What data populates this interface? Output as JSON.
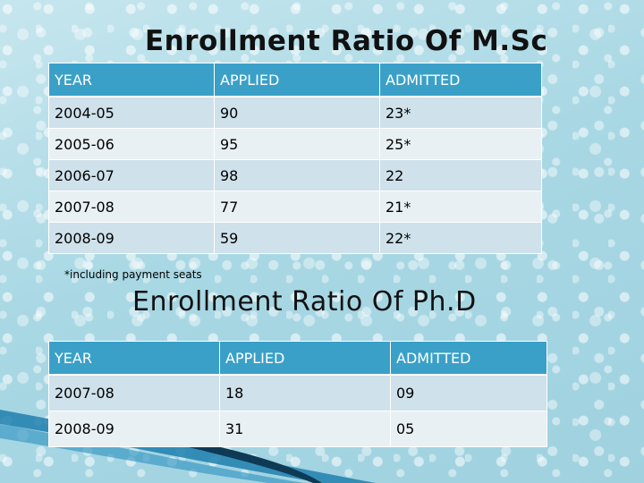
{
  "msc": {
    "title": "Enrollment Ratio Of M.Sc",
    "headers": [
      "YEAR",
      "APPLIED",
      "ADMITTED"
    ],
    "rows": [
      [
        "2004-05",
        "90",
        "23*"
      ],
      [
        "2005-06",
        "95",
        "25*"
      ],
      [
        "2006-07",
        "98",
        "22"
      ],
      [
        "2007-08",
        "77",
        "21*"
      ],
      [
        "2008-09",
        "59",
        "22*"
      ]
    ],
    "footnote": "*including payment seats"
  },
  "phd": {
    "title": "Enrollment Ratio Of Ph.D",
    "headers": [
      "YEAR",
      "APPLIED",
      "ADMITTED"
    ],
    "rows": [
      [
        "2007-08",
        "18",
        "09"
      ],
      [
        "2008-09",
        "31",
        "05"
      ]
    ]
  },
  "colors": {
    "header_bg": "#3aa0c8",
    "row_odd": "#cfe1ea",
    "row_even": "#e8f0f4",
    "background": "#a9d8e4"
  }
}
